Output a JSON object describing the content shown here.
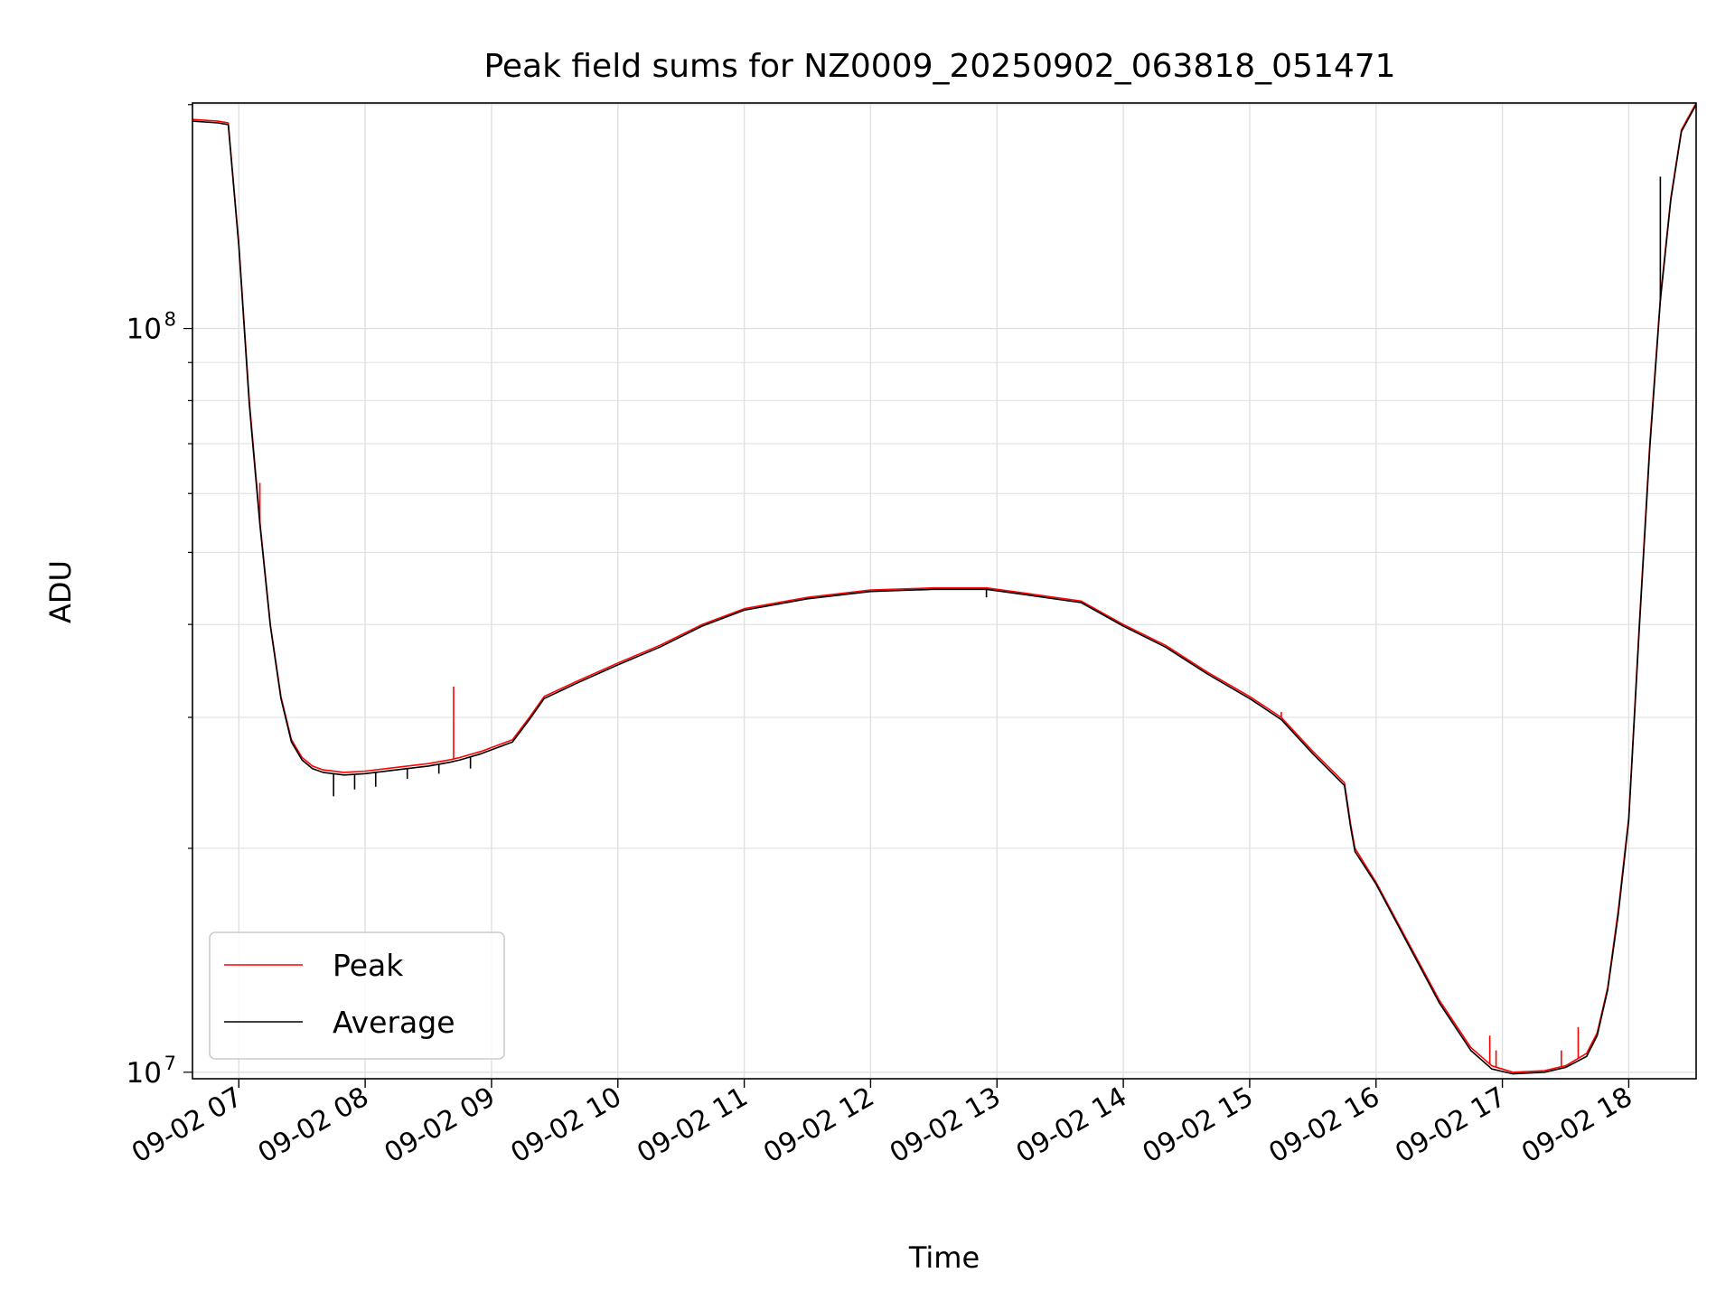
{
  "chart_data": {
    "type": "line",
    "title": "Peak field sums for NZ0009_20250902_063818_051471",
    "xlabel": "Time",
    "ylabel": "ADU",
    "yscale": "log",
    "xlim": [
      "2025-09-02 06:38",
      "2025-09-02 18:32"
    ],
    "ylim": [
      9800000,
      201000000
    ],
    "grid": true,
    "grid_minor_y": true,
    "legend_position": "lower-left",
    "x_ticks": [
      "2025-09-02 07:00",
      "2025-09-02 08:00",
      "2025-09-02 09:00",
      "2025-09-02 10:00",
      "2025-09-02 11:00",
      "2025-09-02 12:00",
      "2025-09-02 13:00",
      "2025-09-02 14:00",
      "2025-09-02 15:00",
      "2025-09-02 16:00",
      "2025-09-02 17:00",
      "2025-09-02 18:00"
    ],
    "x_tick_labels": [
      "09-02 07",
      "09-02 08",
      "09-02 09",
      "09-02 10",
      "09-02 11",
      "09-02 12",
      "09-02 13",
      "09-02 14",
      "09-02 15",
      "09-02 16",
      "09-02 17",
      "09-02 18"
    ],
    "y_ticks": [
      {
        "value": 10000000,
        "base": "10",
        "exp": "7"
      },
      {
        "value": 100000000,
        "base": "10",
        "exp": "8"
      }
    ],
    "series": [
      {
        "name": "Peak",
        "color": "#ff0000",
        "x": [
          "2025-09-02 06:38",
          "2025-09-02 06:50",
          "2025-09-02 06:55",
          "2025-09-02 07:00",
          "2025-09-02 07:05",
          "2025-09-02 07:10",
          "2025-09-02 07:15",
          "2025-09-02 07:20",
          "2025-09-02 07:25",
          "2025-09-02 07:30",
          "2025-09-02 07:35",
          "2025-09-02 07:40",
          "2025-09-02 07:50",
          "2025-09-02 08:00",
          "2025-09-02 08:15",
          "2025-09-02 08:30",
          "2025-09-02 08:40",
          "2025-09-02 08:45",
          "2025-09-02 08:55",
          "2025-09-02 09:10",
          "2025-09-02 09:18",
          "2025-09-02 09:25",
          "2025-09-02 09:40",
          "2025-09-02 10:00",
          "2025-09-02 10:20",
          "2025-09-02 10:40",
          "2025-09-02 11:00",
          "2025-09-02 11:30",
          "2025-09-02 12:00",
          "2025-09-02 12:30",
          "2025-09-02 12:55",
          "2025-09-02 13:15",
          "2025-09-02 13:40",
          "2025-09-02 14:00",
          "2025-09-02 14:20",
          "2025-09-02 14:40",
          "2025-09-02 15:00",
          "2025-09-02 15:15",
          "2025-09-02 15:30",
          "2025-09-02 15:45",
          "2025-09-02 15:48",
          "2025-09-02 15:50",
          "2025-09-02 16:00",
          "2025-09-02 16:15",
          "2025-09-02 16:30",
          "2025-09-02 16:45",
          "2025-09-02 16:55",
          "2025-09-02 17:05",
          "2025-09-02 17:20",
          "2025-09-02 17:30",
          "2025-09-02 17:40",
          "2025-09-02 17:45",
          "2025-09-02 17:50",
          "2025-09-02 17:55",
          "2025-09-02 18:00",
          "2025-09-02 18:05",
          "2025-09-02 18:10",
          "2025-09-02 18:15",
          "2025-09-02 18:20",
          "2025-09-02 18:25",
          "2025-09-02 18:32"
        ],
        "y": [
          191000000,
          190000000,
          189000000,
          130000000,
          80000000,
          55000000,
          40000000,
          32000000,
          28000000,
          26500000,
          25800000,
          25500000,
          25300000,
          25400000,
          25700000,
          26000000,
          26300000,
          26500000,
          27000000,
          28000000,
          30000000,
          32000000,
          33500000,
          35500000,
          37500000,
          40000000,
          42000000,
          43500000,
          44500000,
          44800000,
          44800000,
          44000000,
          43000000,
          40000000,
          37500000,
          34500000,
          32000000,
          30000000,
          27000000,
          24500000,
          21500000,
          20000000,
          18000000,
          15000000,
          12500000,
          10800000,
          10200000,
          10000000,
          10050000,
          10200000,
          10600000,
          11300000,
          13000000,
          16500000,
          22000000,
          40000000,
          70000000,
          110000000,
          150000000,
          185000000,
          201000000
        ],
        "spikes": [
          {
            "x": "2025-09-02 08:42",
            "y": 33000000
          },
          {
            "x": "2025-09-02 07:10",
            "y": 62000000
          },
          {
            "x": "2025-09-02 15:15",
            "y": 30500000
          },
          {
            "x": "2025-09-02 16:54",
            "y": 11200000
          },
          {
            "x": "2025-09-02 16:57",
            "y": 10700000
          },
          {
            "x": "2025-09-02 17:28",
            "y": 10700000
          },
          {
            "x": "2025-09-02 17:36",
            "y": 11500000
          }
        ]
      },
      {
        "name": "Average",
        "color": "#000000",
        "x": [
          "2025-09-02 06:38",
          "2025-09-02 06:50",
          "2025-09-02 06:55",
          "2025-09-02 07:00",
          "2025-09-02 07:05",
          "2025-09-02 07:10",
          "2025-09-02 07:15",
          "2025-09-02 07:20",
          "2025-09-02 07:25",
          "2025-09-02 07:30",
          "2025-09-02 07:35",
          "2025-09-02 07:40",
          "2025-09-02 07:50",
          "2025-09-02 08:00",
          "2025-09-02 08:15",
          "2025-09-02 08:30",
          "2025-09-02 08:40",
          "2025-09-02 08:45",
          "2025-09-02 08:55",
          "2025-09-02 09:10",
          "2025-09-02 09:18",
          "2025-09-02 09:25",
          "2025-09-02 09:40",
          "2025-09-02 10:00",
          "2025-09-02 10:20",
          "2025-09-02 10:40",
          "2025-09-02 11:00",
          "2025-09-02 11:30",
          "2025-09-02 12:00",
          "2025-09-02 12:30",
          "2025-09-02 12:55",
          "2025-09-02 13:15",
          "2025-09-02 13:40",
          "2025-09-02 14:00",
          "2025-09-02 14:20",
          "2025-09-02 14:40",
          "2025-09-02 15:00",
          "2025-09-02 15:15",
          "2025-09-02 15:30",
          "2025-09-02 15:45",
          "2025-09-02 15:48",
          "2025-09-02 15:50",
          "2025-09-02 16:00",
          "2025-09-02 16:15",
          "2025-09-02 16:30",
          "2025-09-02 16:45",
          "2025-09-02 16:55",
          "2025-09-02 17:05",
          "2025-09-02 17:20",
          "2025-09-02 17:30",
          "2025-09-02 17:40",
          "2025-09-02 17:45",
          "2025-09-02 17:50",
          "2025-09-02 17:55",
          "2025-09-02 18:00",
          "2025-09-02 18:05",
          "2025-09-02 18:10",
          "2025-09-02 18:15",
          "2025-09-02 18:20",
          "2025-09-02 18:25",
          "2025-09-02 18:32"
        ],
        "y": [
          190000000,
          189000000,
          188000000,
          129000000,
          79000000,
          54500000,
          39800000,
          31800000,
          27800000,
          26300000,
          25600000,
          25300000,
          25100000,
          25200000,
          25500000,
          25800000,
          26100000,
          26300000,
          26800000,
          27800000,
          29800000,
          31800000,
          33300000,
          35300000,
          37300000,
          39800000,
          41800000,
          43300000,
          44300000,
          44600000,
          44600000,
          43800000,
          42800000,
          39800000,
          37300000,
          34300000,
          31800000,
          29800000,
          26800000,
          24300000,
          21300000,
          19800000,
          17900000,
          14900000,
          12400000,
          10700000,
          10100000,
          9950000,
          10000000,
          10150000,
          10500000,
          11200000,
          12900000,
          16300000,
          21800000,
          39500000,
          69000000,
          109000000,
          149000000,
          184000000,
          200000000
        ],
        "dips": [
          {
            "x": "2025-09-02 07:45",
            "y": 23500000
          },
          {
            "x": "2025-09-02 07:55",
            "y": 24000000
          },
          {
            "x": "2025-09-02 08:05",
            "y": 24200000
          },
          {
            "x": "2025-09-02 08:20",
            "y": 24800000
          },
          {
            "x": "2025-09-02 08:35",
            "y": 25200000
          },
          {
            "x": "2025-09-02 08:50",
            "y": 25600000
          },
          {
            "x": "2025-09-02 12:55",
            "y": 43500000
          },
          {
            "x": "2025-09-02 18:15",
            "y": 160000000
          }
        ]
      }
    ]
  }
}
